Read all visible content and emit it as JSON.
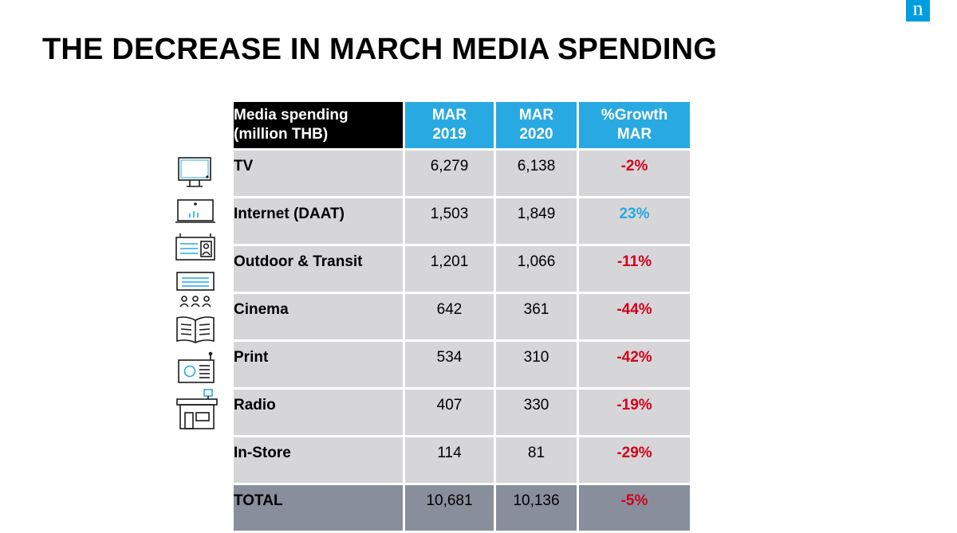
{
  "brand": {
    "logo_text": "n"
  },
  "title": "THE DECREASE IN MARCH MEDIA SPENDING",
  "table": {
    "header": {
      "label_line1": "Media spending",
      "label_line2": "(million THB)",
      "col1_line1": "MAR",
      "col1_line2": "2019",
      "col2_line1": "MAR",
      "col2_line2": "2020",
      "col3_line1": "%Growth",
      "col3_line2": "MAR"
    },
    "rows": [
      {
        "label": "TV",
        "mar2019": "6,279",
        "mar2020": "6,138",
        "growth": "-2%",
        "icon": "tv-icon"
      },
      {
        "label": "Internet (DAAT)",
        "mar2019": "1,503",
        "mar2020": "1,849",
        "growth": "23%",
        "icon": "laptop-chart-icon"
      },
      {
        "label": "Outdoor & Transit",
        "mar2019": "1,201",
        "mar2020": "1,066",
        "growth": "-11%",
        "icon": "billboard-icon"
      },
      {
        "label": "Cinema",
        "mar2019": "642",
        "mar2020": "361",
        "growth": "-44%",
        "icon": "cinema-icon"
      },
      {
        "label": "Print",
        "mar2019": "534",
        "mar2020": "310",
        "growth": "-42%",
        "icon": "book-icon"
      },
      {
        "label": "Radio",
        "mar2019": "407",
        "mar2020": "330",
        "growth": "-19%",
        "icon": "radio-icon"
      },
      {
        "label": "In-Store",
        "mar2019": "114",
        "mar2020": "81",
        "growth": "-29%",
        "icon": "store-icon"
      }
    ],
    "total": {
      "label": "TOTAL",
      "mar2019": "10,681",
      "mar2020": "10,136",
      "growth": "-5%"
    }
  },
  "colors": {
    "accent_blue": "#29a9e1",
    "negative_red": "#d0021b",
    "row_gray": "#d6d6d9",
    "total_gray": "#888e9b",
    "header_black": "#000000"
  }
}
